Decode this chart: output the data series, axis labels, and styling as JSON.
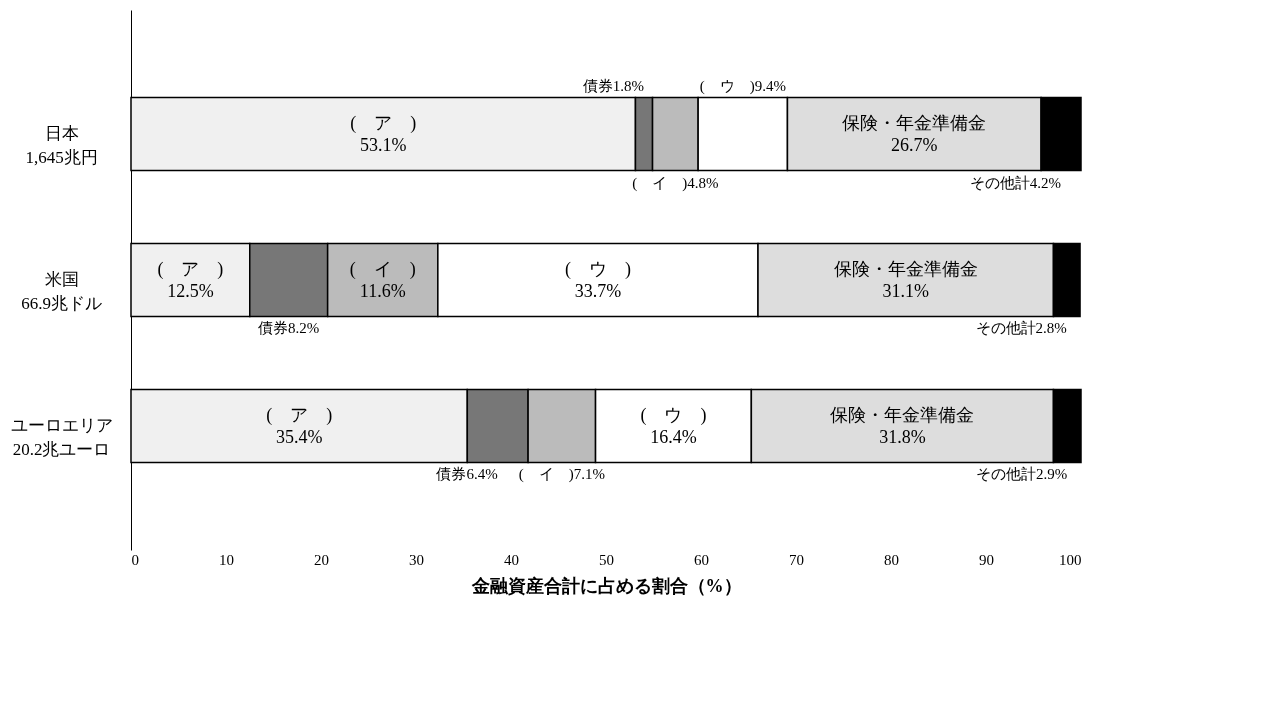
{
  "chart_data": {
    "type": "bar",
    "orientation": "horizontal",
    "stacked": true,
    "grid": false,
    "categories": [
      "日本\n1,645兆円",
      "米国\n66.9兆ドル",
      "ユーロエリア\n20.2兆ユーロ"
    ],
    "xlim": [
      0,
      100
    ],
    "xticks": [
      0,
      10,
      20,
      30,
      40,
      50,
      60,
      70,
      80,
      90,
      100
    ],
    "xlabel": "金融資産合計に占める割合（%）",
    "series": [
      {
        "color": "#f0f0f0",
        "values": [
          53.1,
          12.5,
          35.4
        ],
        "value_labels": [
          "(　ア　)\n53.1%",
          "(　ア　)\n12.5%",
          "(　ア　)\n35.4%"
        ]
      },
      {
        "color": "#777777",
        "values": [
          1.8,
          8.2,
          6.4
        ],
        "value_labels": [
          "債券1.8%",
          "債券8.2%",
          "債券6.4%"
        ]
      },
      {
        "color": "#bbbbbb",
        "values": [
          4.8,
          11.6,
          7.1
        ],
        "value_labels": [
          "(　イ　)4.8%",
          "(　イ　)\n11.6%",
          "(　イ　)7.1%"
        ]
      },
      {
        "color": "#ffffff",
        "values": [
          9.4,
          33.7,
          16.4
        ],
        "value_labels": [
          "(　ウ　)9.4%",
          "(　ウ　)\n33.7%",
          "(　ウ　)\n16.4%"
        ]
      },
      {
        "color": "#dddddd",
        "values": [
          26.7,
          31.1,
          31.8
        ],
        "value_labels": [
          "保険・年金準備金\n26.7%",
          "保険・年金準備金\n31.1%",
          "保険・年金準備金\n31.8%"
        ]
      },
      {
        "color": "#000000",
        "values": [
          4.2,
          2.8,
          2.9
        ],
        "value_labels": [
          "その他計4.2%",
          "その他計2.8%",
          "その他計2.9%"
        ]
      }
    ]
  }
}
